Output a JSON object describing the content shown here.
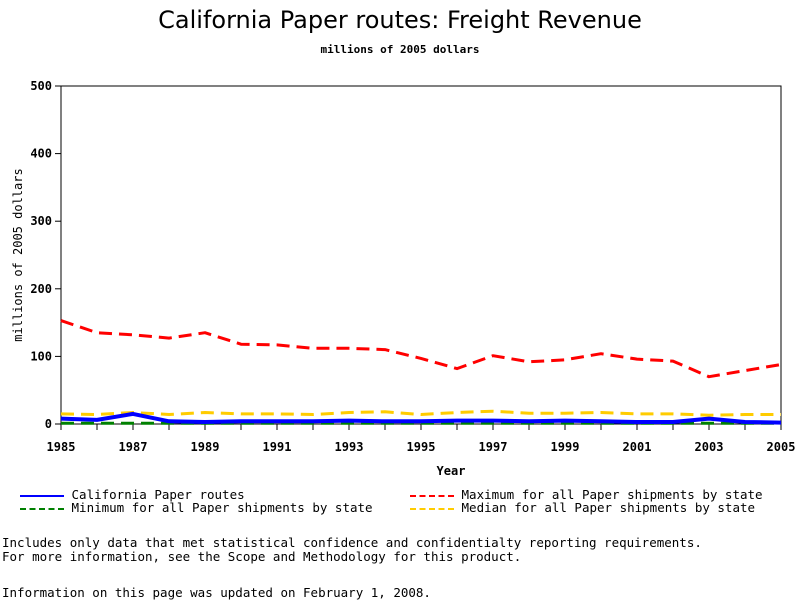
{
  "chart_data": {
    "type": "line",
    "title": "California Paper routes: Freight Revenue",
    "subtitle": "millions of 2005 dollars",
    "xlabel": "Year",
    "ylabel": "millions of 2005 dollars",
    "xlim": [
      1985,
      2005
    ],
    "ylim": [
      0,
      500
    ],
    "xticks": [
      "1985",
      "1987",
      "1989",
      "1991",
      "1993",
      "1995",
      "1997",
      "1999",
      "2001",
      "2003",
      "2005"
    ],
    "yticks": [
      "0",
      "100",
      "200",
      "300",
      "400",
      "500"
    ],
    "x": [
      1985,
      1986,
      1987,
      1988,
      1989,
      1990,
      1991,
      1992,
      1993,
      1994,
      1995,
      1996,
      1997,
      1998,
      1999,
      2000,
      2001,
      2002,
      2003,
      2004,
      2005
    ],
    "series": [
      {
        "name": "California Paper routes",
        "color": "#0000ff",
        "dash": "solid",
        "values": [
          8,
          6,
          15,
          4,
          3,
          4,
          4,
          4,
          5,
          4,
          4,
          5,
          5,
          4,
          5,
          4,
          3,
          3,
          8,
          3,
          2
        ]
      },
      {
        "name": "Maximum for all Paper shipments by state",
        "color": "#ff0000",
        "dash": "dashed",
        "values": [
          153,
          135,
          132,
          127,
          135,
          118,
          117,
          112,
          112,
          110,
          97,
          82,
          101,
          92,
          95,
          104,
          96,
          93,
          70,
          79,
          88
        ]
      },
      {
        "name": "Minimum for all Paper shipments by state",
        "color": "#008000",
        "dash": "dashed",
        "values": [
          1,
          1,
          1,
          1,
          1,
          1,
          1,
          1,
          1,
          1,
          1,
          1,
          1,
          1,
          1,
          1,
          1,
          1,
          1,
          1,
          1
        ]
      },
      {
        "name": "Median for all Paper shipments by state",
        "color": "#ffcc00",
        "dash": "dashed",
        "values": [
          15,
          14,
          17,
          14,
          17,
          15,
          15,
          14,
          17,
          18,
          14,
          17,
          19,
          16,
          16,
          17,
          15,
          15,
          13,
          14,
          14
        ]
      }
    ],
    "grid": false,
    "legend": "bottom"
  },
  "notes": {
    "line1": "Includes only data that met statistical confidence and confidentialty reporting requirements.",
    "line2": "For more information, see the Scope and Methodology for this product.",
    "line3": "Information on this page was updated on February 1, 2008."
  }
}
